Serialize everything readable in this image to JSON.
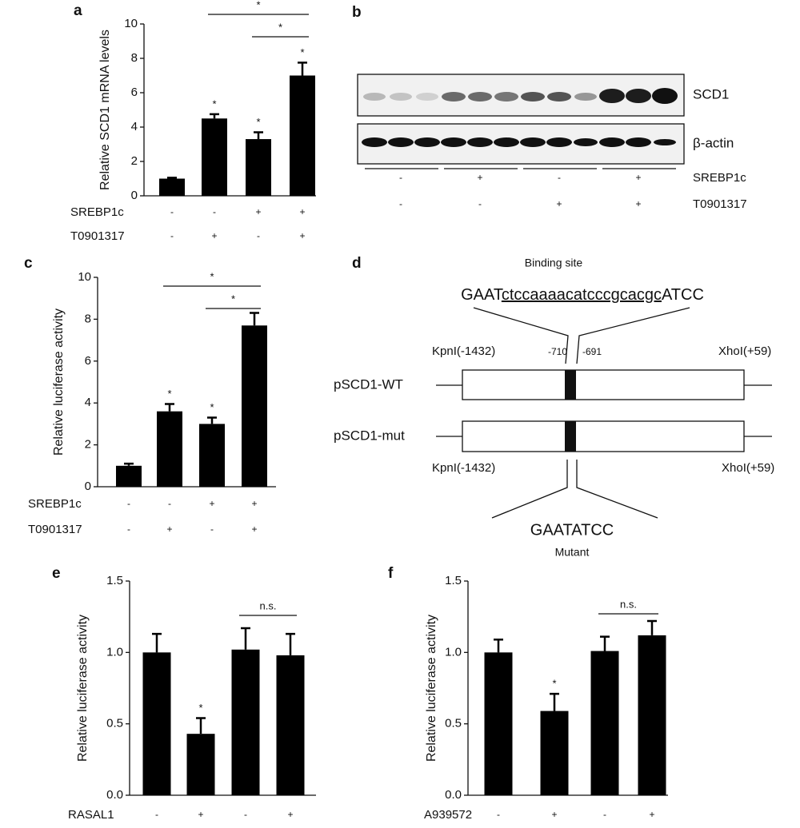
{
  "chart_data": [
    {
      "type": "bar",
      "label": "a",
      "ylabel": "Relative SCD1 mRNA levels",
      "categories": [
        null,
        null,
        null,
        null
      ],
      "values": [
        1.0,
        4.5,
        3.3,
        7.0
      ],
      "errors": [
        0.05,
        0.25,
        0.4,
        0.75
      ],
      "color": "#000000",
      "ylim": [
        0,
        10
      ],
      "yticks": [
        0,
        2,
        4,
        6,
        8,
        10
      ],
      "significance": [
        null,
        "*",
        "*",
        "*"
      ],
      "brackets": [
        {
          "label": "*",
          "between": [
            1,
            3
          ]
        },
        {
          "label": "*",
          "between": [
            2,
            3
          ]
        }
      ],
      "conditions": [
        {
          "name": "SREBP1c",
          "signs": [
            "-",
            "-",
            "+",
            "+"
          ]
        },
        {
          "name": "T0901317",
          "signs": [
            "-",
            "+",
            "-",
            "+"
          ]
        }
      ]
    },
    {
      "type": "bar",
      "label": "c",
      "ylabel": "Relative  luciferase activity",
      "categories": [
        null,
        null,
        null,
        null
      ],
      "values": [
        1.0,
        3.6,
        3.0,
        7.7
      ],
      "errors": [
        0.1,
        0.35,
        0.3,
        0.6
      ],
      "color": "#000000",
      "ylim": [
        0,
        10
      ],
      "yticks": [
        0,
        2,
        4,
        6,
        8,
        10
      ],
      "significance": [
        null,
        "*",
        "*",
        null
      ],
      "brackets": [
        {
          "label": "*",
          "between": [
            1,
            3
          ]
        },
        {
          "label": "*",
          "between": [
            2,
            3
          ]
        }
      ],
      "conditions": [
        {
          "name": "SREBP1c",
          "signs": [
            "-",
            "-",
            "+",
            "+"
          ]
        },
        {
          "name": "T0901317",
          "signs": [
            "-",
            "+",
            "-",
            "+"
          ]
        }
      ]
    },
    {
      "type": "bar",
      "label": "e",
      "ylabel": "Relative  luciferase activity",
      "categories": [
        null,
        null,
        null,
        null
      ],
      "values": [
        1.0,
        0.43,
        1.02,
        0.98
      ],
      "errors": [
        0.13,
        0.11,
        0.15,
        0.15
      ],
      "color": "#000000",
      "ylim": [
        0,
        1.5
      ],
      "yticks": [
        {
          "value": 0,
          "label": "0.0"
        },
        0.5,
        {
          "value": 1,
          "label": "1.0"
        },
        1.5
      ],
      "significance": [
        null,
        "*",
        null,
        null
      ],
      "brackets": [
        {
          "label": "n.s.",
          "between": [
            2,
            3
          ]
        }
      ],
      "conditions": [
        {
          "name": "RASAL1",
          "signs": [
            "-",
            "+",
            "-",
            "+"
          ]
        }
      ]
    },
    {
      "type": "bar",
      "label": "f",
      "ylabel": "Relative  luciferase activity",
      "categories": [
        null,
        null,
        null,
        null
      ],
      "values": [
        1.0,
        0.59,
        1.01,
        1.12
      ],
      "errors": [
        0.09,
        0.12,
        0.1,
        0.1
      ],
      "color": "#000000",
      "ylim": [
        0,
        1.5
      ],
      "yticks": [
        {
          "value": 0,
          "label": "0.0"
        },
        0.5,
        {
          "value": 1,
          "label": "1.0"
        },
        1.5
      ],
      "significance": [
        null,
        "*",
        null,
        null
      ],
      "brackets": [
        {
          "label": "n.s.",
          "between": [
            2,
            3
          ]
        }
      ],
      "conditions": [
        {
          "name": "A939572",
          "signs": [
            "-",
            "+",
            "-",
            "+"
          ]
        }
      ]
    }
  ],
  "blot": {
    "label": "b",
    "bands": [
      "SCD1",
      "β-actin"
    ],
    "conditions": [
      {
        "name": "SREBP1c",
        "signs": [
          "-",
          "+",
          "-",
          "+"
        ]
      },
      {
        "name": "T0901317",
        "signs": [
          "-",
          "-",
          "+",
          "+"
        ]
      }
    ]
  },
  "construct": {
    "label": "d",
    "binding_title": "Binding site",
    "sequence": [
      "GAAT",
      "ctccaaaacatcccgcacgc",
      "ATCC"
    ],
    "kpn_top": "KpnI(-1432)",
    "pos_left": "-710",
    "pos_right": "-691",
    "xho_top": "XhoI(+59)",
    "wt": "pSCD1-WT",
    "mut": "pSCD1-mut",
    "kpn_bottom": "KpnI(-1432)",
    "xho_bottom": "XhoI(+59)",
    "mutant_sequence": "GAATATCC",
    "mutant_title": "Mutant"
  }
}
